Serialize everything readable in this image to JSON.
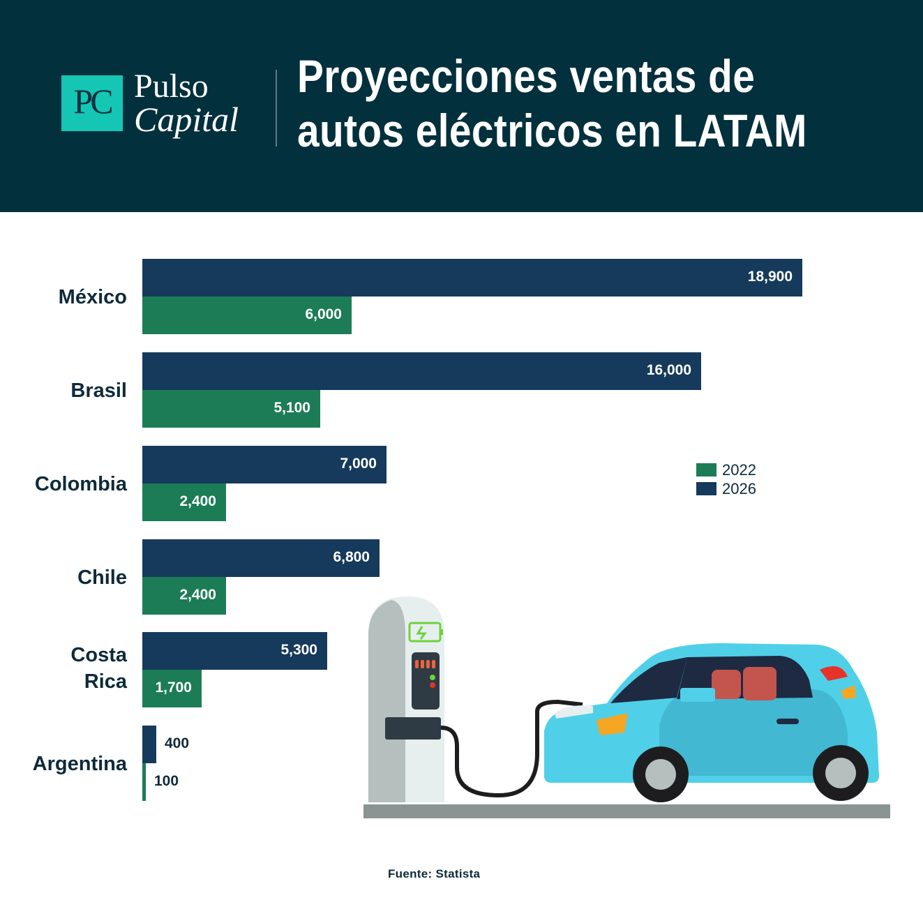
{
  "header": {
    "logo_monogram": "PC",
    "brand_line1": "Pulso",
    "brand_line2": "Capital",
    "title_line1": "Proyecciones ventas de",
    "title_line2": "autos eléctricos en LATAM"
  },
  "colors": {
    "y2026": "#153a5b",
    "y2022": "#1c7c56",
    "header_bg": "#03303d",
    "logo": "#15c6b4"
  },
  "chart_data": {
    "type": "bar",
    "orientation": "horizontal",
    "title": "Proyecciones ventas de autos eléctricos en LATAM",
    "categories": [
      "México",
      "Brasil",
      "Colombia",
      "Chile",
      "Costa Rica",
      "Argentina"
    ],
    "series": [
      {
        "name": "2026",
        "values": [
          18900,
          16000,
          7000,
          6800,
          5300,
          400
        ],
        "labels": [
          "18,900",
          "16,000",
          "7,000",
          "6,800",
          "5,300",
          "400"
        ]
      },
      {
        "name": "2022",
        "values": [
          6000,
          5100,
          2400,
          2400,
          1700,
          100
        ],
        "labels": [
          "6,000",
          "5,100",
          "2,400",
          "2,400",
          "1,700",
          "100"
        ]
      }
    ],
    "legend": {
      "position": "right",
      "entries": [
        "2022",
        "2026"
      ]
    },
    "grid": false
  },
  "source": "Fuente: Statista",
  "illustration": "electric-car-charging"
}
